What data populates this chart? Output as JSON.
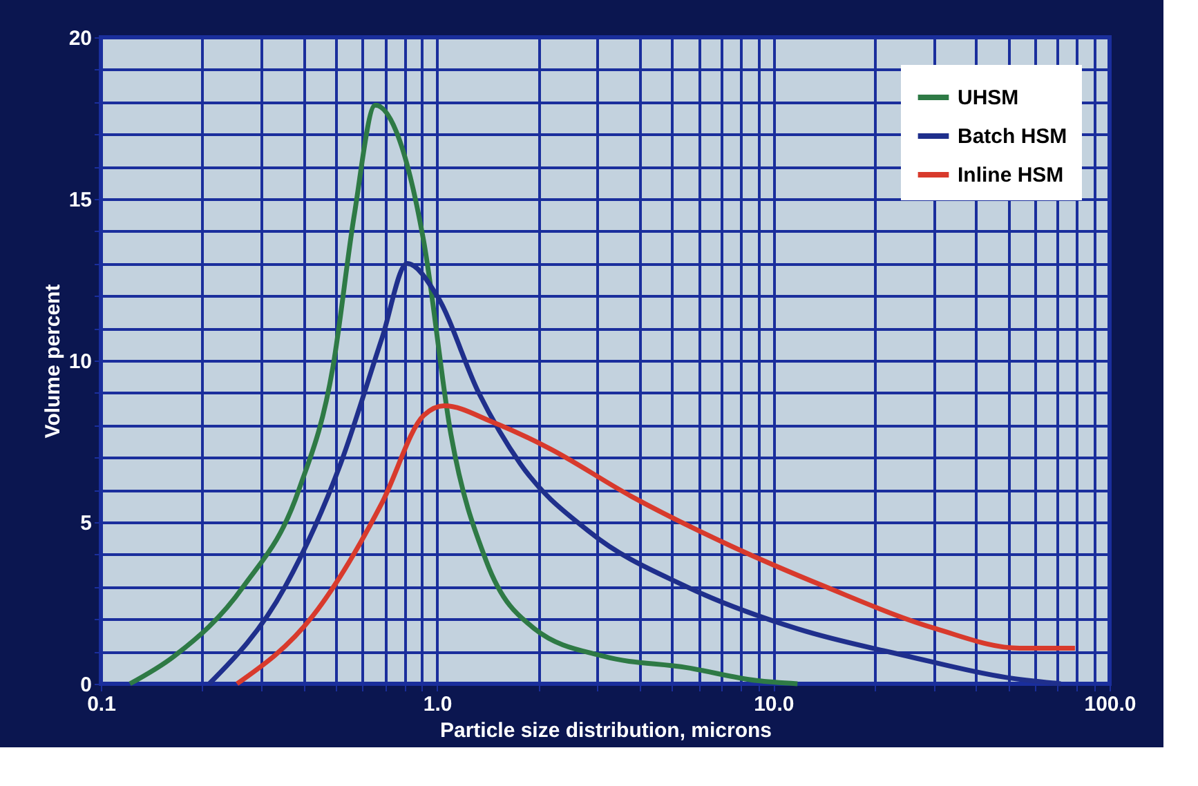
{
  "chart_data": {
    "type": "line",
    "xlabel": "Particle size distribution, microns",
    "ylabel": "Volume percent",
    "log": "x",
    "xlim": [
      0.1,
      100
    ],
    "ylim": [
      0,
      20
    ],
    "xticks": [
      {
        "value": 0.1,
        "label": "0.1"
      },
      {
        "value": 0.2,
        "label": null
      },
      {
        "value": 0.3,
        "label": null
      },
      {
        "value": 0.4,
        "label": null
      },
      {
        "value": 0.5,
        "label": null
      },
      {
        "value": 0.6,
        "label": null
      },
      {
        "value": 0.7,
        "label": null
      },
      {
        "value": 0.8,
        "label": null
      },
      {
        "value": 0.9,
        "label": null
      },
      {
        "value": 1,
        "label": "1.0"
      },
      {
        "value": 2,
        "label": null
      },
      {
        "value": 3,
        "label": null
      },
      {
        "value": 4,
        "label": null
      },
      {
        "value": 5,
        "label": null
      },
      {
        "value": 6,
        "label": null
      },
      {
        "value": 7,
        "label": null
      },
      {
        "value": 8,
        "label": null
      },
      {
        "value": 9,
        "label": null
      },
      {
        "value": 10,
        "label": "10.0"
      },
      {
        "value": 20,
        "label": null
      },
      {
        "value": 30,
        "label": null
      },
      {
        "value": 40,
        "label": null
      },
      {
        "value": 50,
        "label": null
      },
      {
        "value": 60,
        "label": null
      },
      {
        "value": 70,
        "label": null
      },
      {
        "value": 80,
        "label": null
      },
      {
        "value": 90,
        "label": null
      },
      {
        "value": 100,
        "label": "100.0"
      }
    ],
    "yticks": [
      0,
      {
        "value": 1,
        "label": null
      },
      {
        "value": 2,
        "label": null
      },
      {
        "value": 3,
        "label": null
      },
      {
        "value": 4,
        "label": null
      },
      5,
      {
        "value": 6,
        "label": null
      },
      {
        "value": 7,
        "label": null
      },
      {
        "value": 8,
        "label": null
      },
      {
        "value": 9,
        "label": null
      },
      10,
      {
        "value": 11,
        "label": null
      },
      {
        "value": 12,
        "label": null
      },
      {
        "value": 13,
        "label": null
      },
      {
        "value": 14,
        "label": null
      },
      15,
      {
        "value": 16,
        "label": null
      },
      {
        "value": 17,
        "label": null
      },
      {
        "value": 18,
        "label": null
      },
      {
        "value": 19,
        "label": null
      },
      20
    ],
    "grid": true,
    "legend": "top right",
    "marker": "none",
    "line_style": "solid",
    "series": [
      {
        "name": "UHSM",
        "color": "#2e7a45",
        "x": [
          0.122,
          0.165,
          0.265,
          0.388,
          0.49,
          0.567,
          0.655,
          0.755,
          0.912,
          1.1,
          1.4,
          1.95,
          3.13,
          5.53,
          8.9,
          11.8
        ],
        "values": [
          0,
          0.85,
          3,
          6,
          9.8,
          14.5,
          17.9,
          17.1,
          13.7,
          7.7,
          3.8,
          1.7,
          0.85,
          0.5,
          0.1,
          0
        ]
      },
      {
        "name": "Batch HSM",
        "color": "#1f2f8c",
        "x": [
          0.21,
          0.353,
          0.516,
          0.686,
          0.814,
          1.0,
          1.33,
          1.77,
          2.84,
          5.53,
          11.8,
          25.2,
          49,
          71.6
        ],
        "values": [
          0,
          3,
          6.8,
          10.7,
          13,
          12,
          9,
          6.8,
          4.7,
          3,
          1.7,
          0.85,
          0.2,
          0
        ]
      },
      {
        "name": "Inline HSM",
        "color": "#d83a2c",
        "x": [
          0.254,
          0.427,
          0.686,
          0.912,
          1.05,
          1.46,
          2.14,
          3.78,
          7.35,
          14.3,
          30.5,
          54,
          78.9
        ],
        "values": [
          0,
          2.1,
          5.6,
          8.3,
          8.6,
          8.1,
          7.3,
          5.8,
          4.3,
          3,
          1.7,
          1.1,
          1.1
        ]
      }
    ]
  }
}
